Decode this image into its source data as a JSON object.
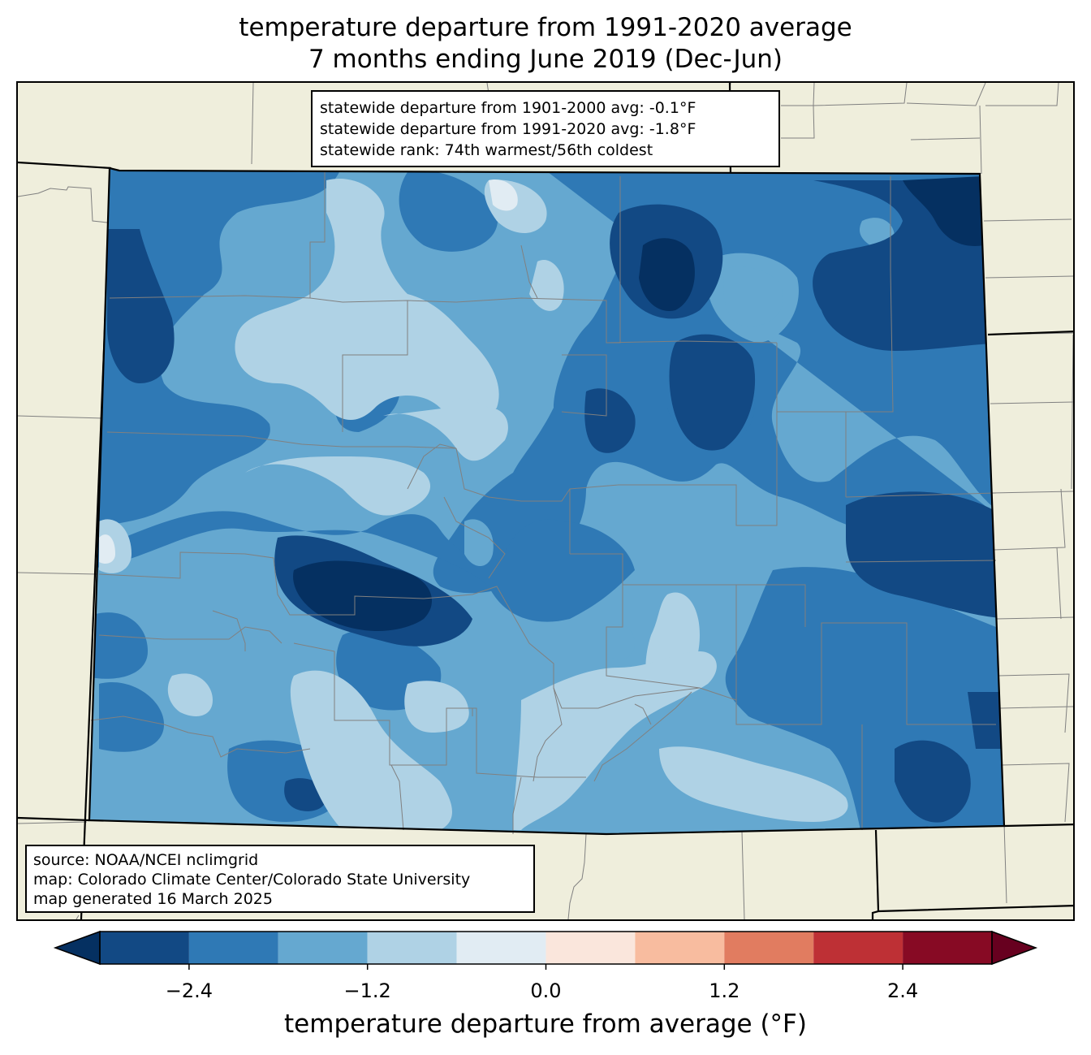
{
  "title": {
    "line1": "temperature departure from 1991-2020 average",
    "line2": "7 months ending June 2019 (Dec-Jun)"
  },
  "stats": {
    "line1": "statewide departure from 1901-2000 avg: -0.1°F",
    "line2": "statewide departure from 1991-2020 avg: -1.8°F",
    "line3": "statewide rank: 74th warmest/56th coldest"
  },
  "source": {
    "line1": "source: NOAA/NCEI nclimgrid",
    "line2": "map: Colorado Climate Center/Colorado State University",
    "line3": "map generated 16 March 2025"
  },
  "colorbar": {
    "label": "temperature departure from average (°F)",
    "ticks": [
      "−2.4",
      "−1.2",
      "0.0",
      "1.2",
      "2.4"
    ],
    "tick_values": [
      -2.4,
      -1.2,
      0.0,
      1.2,
      2.4
    ],
    "range": [
      -3.0,
      3.0
    ],
    "levels": [
      -3.0,
      -2.4,
      -1.8,
      -1.2,
      -0.6,
      0.0,
      0.6,
      1.2,
      1.8,
      2.4,
      3.0
    ],
    "under_color": "#053061",
    "over_color": "#67001f",
    "colors": [
      "#124984",
      "#2f79b5",
      "#65a8d0",
      "#afd2e5",
      "#e1ecf3",
      "#fae6dc",
      "#f8bc9f",
      "#e17c60",
      "#be3035",
      "#870a24"
    ]
  },
  "map": {
    "land_color": "#efeedc",
    "county_line_color": "#808080"
  }
}
